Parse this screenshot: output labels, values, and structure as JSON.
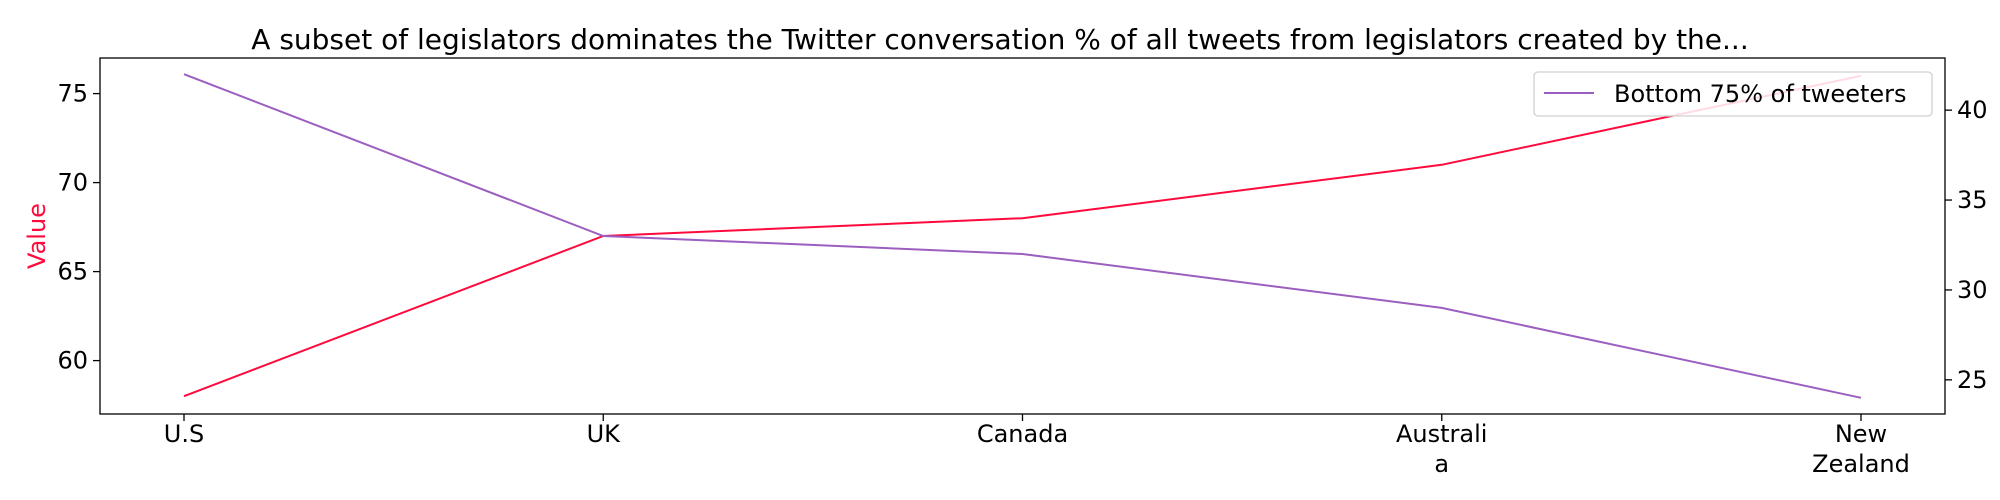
{
  "chart_data": {
    "type": "line",
    "title": "A subset of legislators dominates the Twitter conversation % of all tweets from legislators created by the...",
    "categories": [
      [
        "U.S"
      ],
      [
        "UK"
      ],
      [
        "Canada"
      ],
      [
        "Australi",
        "a"
      ],
      [
        "New",
        "Zealand"
      ]
    ],
    "series": [
      {
        "values": [
          58,
          67,
          68,
          71,
          76
        ],
        "color": "#ff0a3c",
        "axis": "left"
      },
      {
        "name": "Bottom 75% of tweeters",
        "values": [
          42,
          33,
          32,
          29,
          24
        ],
        "color": "#9b5fc0",
        "axis": "right"
      }
    ],
    "ylabel": "Value",
    "ylabel_color": "#ff0a3c",
    "ylim_left": [
      57,
      77
    ],
    "ylim_right": [
      23.1,
      42.9
    ],
    "yticks_left": [
      "60",
      "65",
      "70",
      "75"
    ],
    "yticks_right": [
      "25",
      "30",
      "35",
      "40"
    ],
    "grid": false,
    "legend_position": "top-right"
  }
}
